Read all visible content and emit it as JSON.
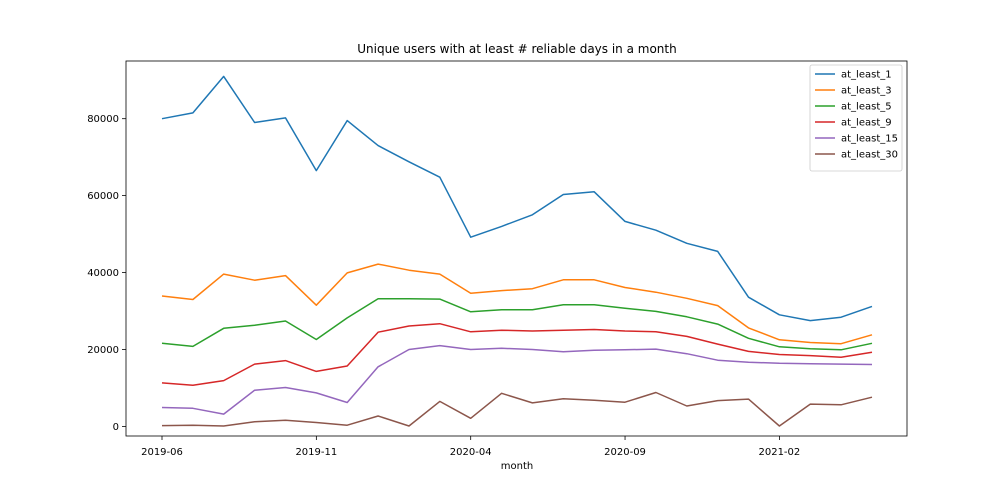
{
  "chart_data": {
    "type": "line",
    "title": "Unique users with at least # reliable days in a month",
    "xlabel": "month",
    "ylabel": "",
    "x": [
      "2019-06",
      "2019-07",
      "2019-08",
      "2019-09",
      "2019-10",
      "2019-11",
      "2019-12",
      "2020-01",
      "2020-02",
      "2020-03",
      "2020-04",
      "2020-05",
      "2020-06",
      "2020-07",
      "2020-08",
      "2020-09",
      "2020-10",
      "2020-11",
      "2020-12",
      "2021-01",
      "2021-02",
      "2021-03",
      "2021-04",
      "2021-05"
    ],
    "xticks": [
      "2019-06",
      "2019-11",
      "2020-04",
      "2020-09",
      "2021-02"
    ],
    "ylim": [
      -2500,
      95000
    ],
    "yticks": [
      0,
      20000,
      40000,
      60000,
      80000
    ],
    "grid": false,
    "legend": "top-right",
    "series": [
      {
        "name": "at_least_1",
        "color": "#1f77b4",
        "values": [
          80000,
          81500,
          91000,
          79000,
          80200,
          66500,
          79500,
          73000,
          68800,
          64800,
          49200,
          52000,
          55000,
          60300,
          61000,
          53300,
          51000,
          47600,
          45500,
          33600,
          29000,
          27500,
          28400,
          31200
        ]
      },
      {
        "name": "at_least_3",
        "color": "#ff7f0e",
        "values": [
          33900,
          33000,
          39600,
          38000,
          39200,
          31500,
          39900,
          42200,
          40600,
          39600,
          34600,
          35300,
          35800,
          38100,
          38100,
          36100,
          34900,
          33300,
          31400,
          25600,
          22500,
          21800,
          21500,
          23800
        ]
      },
      {
        "name": "at_least_5",
        "color": "#2ca02c",
        "values": [
          21600,
          20800,
          25500,
          26300,
          27400,
          22600,
          28200,
          33200,
          33200,
          33100,
          29800,
          30300,
          30300,
          31600,
          31600,
          30700,
          29900,
          28500,
          26600,
          22900,
          20700,
          20200,
          19900,
          21600
        ]
      },
      {
        "name": "at_least_9",
        "color": "#d62728",
        "values": [
          11300,
          10700,
          11900,
          16200,
          17100,
          14300,
          15700,
          24500,
          26100,
          26700,
          24600,
          25000,
          24800,
          25000,
          25200,
          24800,
          24600,
          23400,
          21400,
          19500,
          18700,
          18400,
          18000,
          19300
        ]
      },
      {
        "name": "at_least_15",
        "color": "#9467bd",
        "values": [
          4900,
          4700,
          3200,
          9400,
          10100,
          8700,
          6200,
          15500,
          20000,
          21000,
          20000,
          20300,
          20000,
          19400,
          19800,
          19900,
          20100,
          18900,
          17200,
          16700,
          16400,
          16300,
          16200,
          16100
        ]
      },
      {
        "name": "at_least_30",
        "color": "#8c564b",
        "values": [
          200,
          300,
          100,
          1200,
          1600,
          1000,
          300,
          2700,
          100,
          6500,
          2100,
          8600,
          6100,
          7200,
          6800,
          6300,
          8800,
          5300,
          6700,
          7100,
          100,
          5800,
          5600,
          7600
        ]
      }
    ]
  }
}
